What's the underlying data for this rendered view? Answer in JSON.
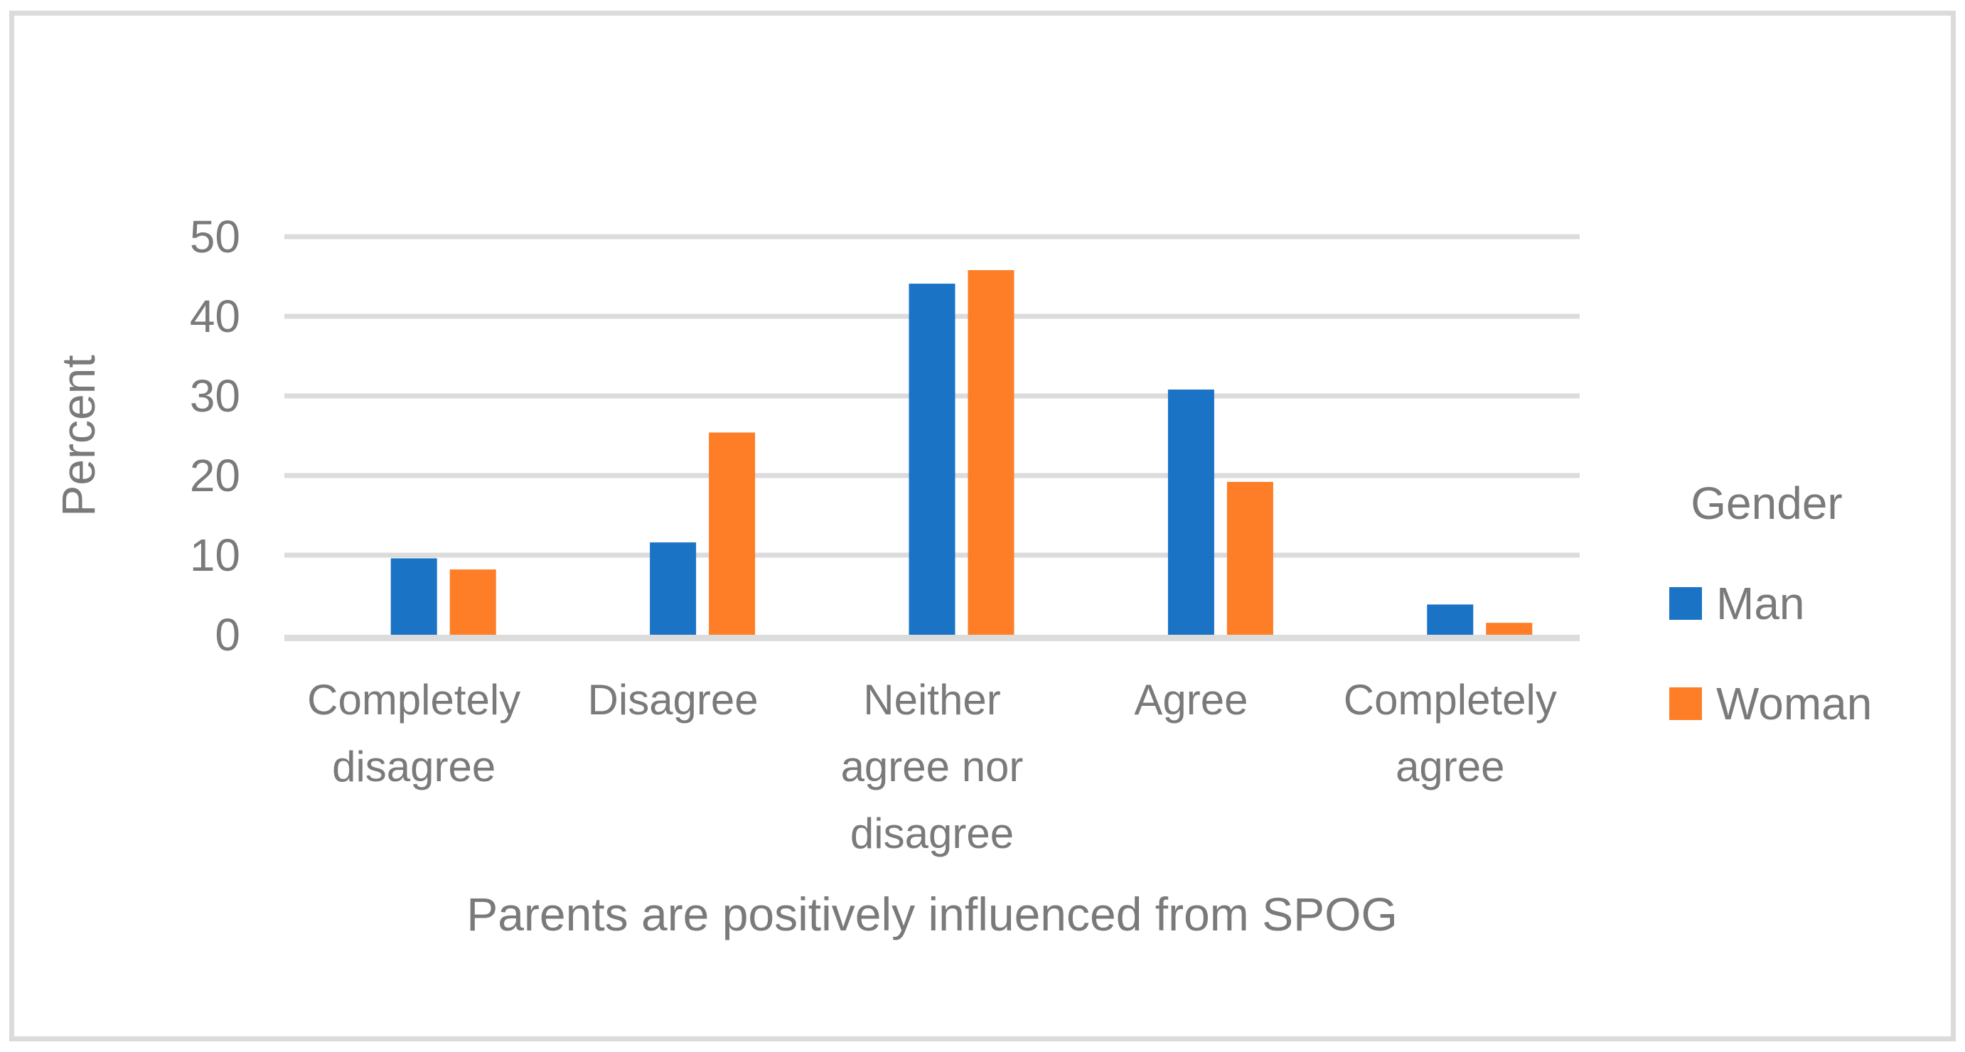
{
  "figure": {
    "y_axis_label": "Percent",
    "x_axis_title": "Parents are positively influenced from SPOG",
    "legend_title": "Gender"
  },
  "chart_data": {
    "type": "bar",
    "title": "",
    "categories": [
      "Completely disagree",
      "Disagree",
      "Neither agree nor disagree",
      "Agree",
      "Completely agree"
    ],
    "series": [
      {
        "name": "Man",
        "color": "#1B73C6",
        "values": [
          9.6,
          11.6,
          44.1,
          30.8,
          3.8
        ]
      },
      {
        "name": "Woman",
        "color": "#FD7E27",
        "values": [
          8.2,
          25.4,
          45.8,
          19.2,
          1.5
        ]
      }
    ],
    "xlabel": "Parents are positively influenced from SPOG",
    "ylabel": "Percent",
    "ylim": [
      0,
      50
    ],
    "yticks": [
      0,
      10,
      20,
      30,
      40,
      50
    ],
    "grid": true,
    "legend_position": "right",
    "legend_title": "Gender",
    "colors": {
      "grid": "#DCDCDC",
      "axis": "#DCDCDC",
      "text": "#7A7A7A",
      "frame_border": "#DBDBDB",
      "background": "#FFFFFF"
    }
  }
}
